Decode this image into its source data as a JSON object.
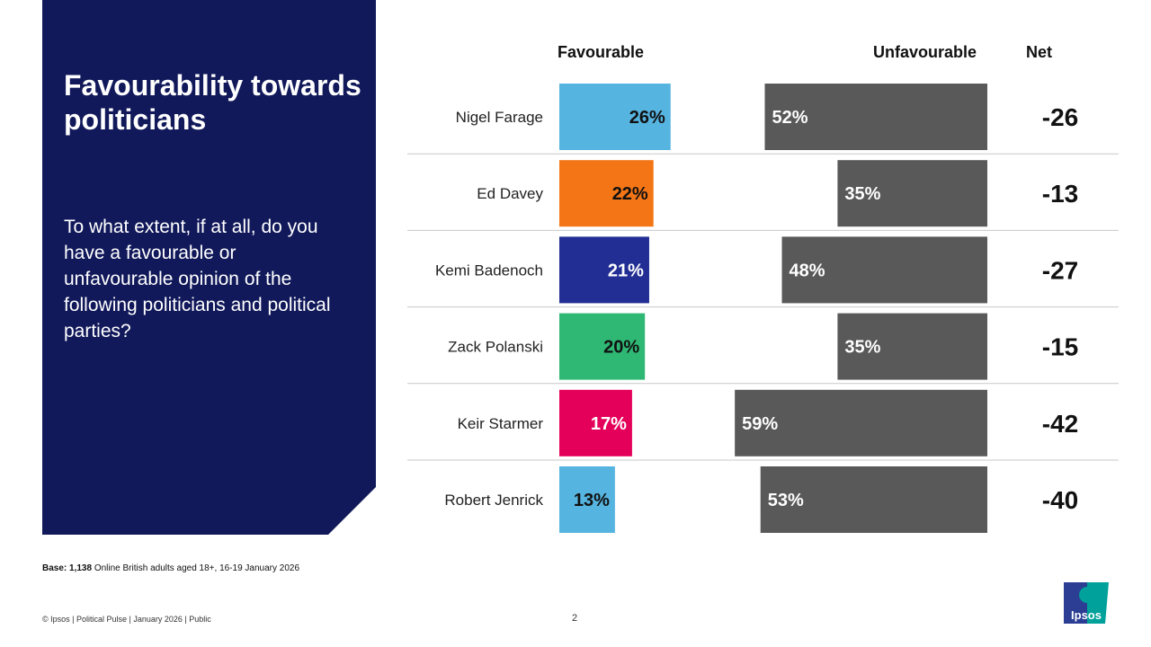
{
  "panel": {
    "title": "Favourability towards politicians",
    "question": "To what extent, if at all, do you have a favourable or unfavourable opinion of the following politicians and political parties?"
  },
  "headers": {
    "favourable": "Favourable",
    "unfavourable": "Unfavourable",
    "net": "Net"
  },
  "chart_data": {
    "type": "bar",
    "orientation": "horizontal",
    "categories": [
      "Nigel Farage",
      "Ed Davey",
      "Kemi Badenoch",
      "Zack Polanski",
      "Keir Starmer",
      "Robert Jenrick"
    ],
    "series": [
      {
        "name": "Favourable",
        "values": [
          26,
          22,
          21,
          20,
          17,
          13
        ],
        "labels": [
          "26%",
          "22%",
          "21%",
          "20%",
          "17%",
          "13%"
        ],
        "colors": [
          "#56b4e0",
          "#f47515",
          "#232e94",
          "#2fb774",
          "#e4005a",
          "#56b4e0"
        ]
      },
      {
        "name": "Unfavourable",
        "values": [
          52,
          35,
          48,
          35,
          59,
          53
        ],
        "labels": [
          "52%",
          "35%",
          "48%",
          "35%",
          "59%",
          "53%"
        ],
        "color": "#595959"
      }
    ],
    "net": {
      "name": "Net",
      "values": [
        "-26",
        "-13",
        "-27",
        "-15",
        "-42",
        "-40"
      ]
    },
    "grid": false
  },
  "footer": {
    "base_label": "Base: 1,138",
    "base_text": " Online British adults aged 18+,  16-19 January 2026",
    "copyright": "© Ipsos | Political Pulse | January 2026 | Public",
    "page": "2"
  },
  "logo": {
    "text": "Ipsos",
    "colors": [
      "#2c3e94",
      "#00a19a"
    ]
  }
}
